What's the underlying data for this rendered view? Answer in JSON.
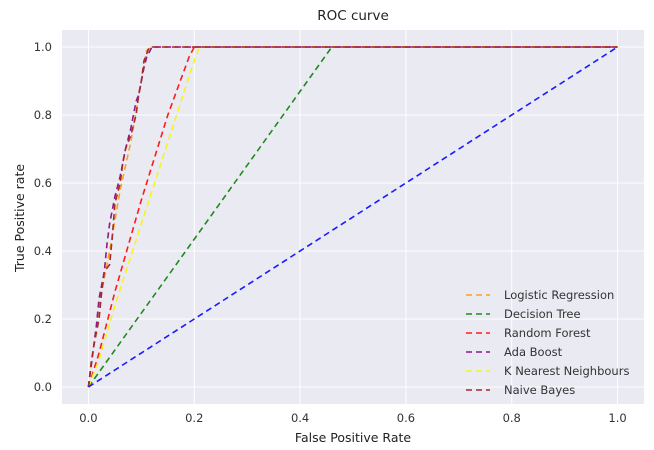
{
  "chart_data": {
    "type": "line",
    "title": "ROC curve",
    "xlabel": "False Positive Rate",
    "ylabel": "True Positive rate",
    "xlim": [
      -0.05,
      1.05
    ],
    "ylim": [
      -0.05,
      1.05
    ],
    "x_ticks": [
      "0.0",
      "0.2",
      "0.4",
      "0.6",
      "0.8",
      "1.0"
    ],
    "x_tick_values": [
      0,
      0.2,
      0.4,
      0.6,
      0.8,
      1.0
    ],
    "y_ticks": [
      "0.0",
      "0.2",
      "0.4",
      "0.6",
      "0.8",
      "1.0"
    ],
    "y_tick_values": [
      0,
      0.2,
      0.4,
      0.6,
      0.8,
      1.0
    ],
    "grid": true,
    "background": "#eaeaf2",
    "legend_position": "lower-right",
    "series": [
      {
        "name": "Logistic Regression",
        "color": "#ff9f1c",
        "style": "dashed",
        "x": [
          0,
          0.01,
          0.02,
          0.04,
          0.06,
          0.08,
          0.1,
          0.11,
          0.12,
          0.2,
          1.0
        ],
        "y": [
          0,
          0.12,
          0.24,
          0.4,
          0.58,
          0.72,
          0.9,
          0.99,
          1.0,
          1.0,
          1.0
        ]
      },
      {
        "name": "Decision Tree",
        "color": "#1f8a1f",
        "style": "dashed",
        "x": [
          0,
          0.46,
          1.0
        ],
        "y": [
          0,
          1.0,
          1.0
        ]
      },
      {
        "name": "Random Forest",
        "color": "#ff1a1a",
        "style": "dashed",
        "x": [
          0,
          0.02,
          0.05,
          0.1,
          0.15,
          0.19,
          0.2,
          1.0
        ],
        "y": [
          0,
          0.1,
          0.28,
          0.55,
          0.8,
          0.97,
          1.0,
          1.0
        ]
      },
      {
        "name": "Ada Boost",
        "color": "#8b1a8b",
        "style": "dashed",
        "x": [
          0,
          0.005,
          0.01,
          0.015,
          0.02,
          0.03,
          0.035,
          0.04,
          0.045,
          0.05,
          0.06,
          0.065,
          0.07,
          0.08,
          0.085,
          0.09,
          0.095,
          0.1,
          0.105,
          0.11,
          0.12,
          0.2,
          1.0
        ],
        "y": [
          0,
          0.06,
          0.12,
          0.18,
          0.26,
          0.34,
          0.42,
          0.48,
          0.52,
          0.56,
          0.62,
          0.66,
          0.7,
          0.76,
          0.8,
          0.84,
          0.86,
          0.9,
          0.94,
          0.97,
          1.0,
          1.0,
          1.0
        ]
      },
      {
        "name": "K Nearest Neighbours",
        "color": "#f5f51a",
        "style": "dashed",
        "x": [
          0,
          0.02,
          0.05,
          0.1,
          0.15,
          0.2,
          0.21,
          1.0
        ],
        "y": [
          0,
          0.08,
          0.24,
          0.48,
          0.72,
          0.96,
          1.0,
          1.0
        ]
      },
      {
        "name": "Naive Bayes",
        "color": "#a52a2a",
        "style": "dashed",
        "x": [
          0,
          0.005,
          0.01,
          0.02,
          0.025,
          0.03,
          0.04,
          0.045,
          0.05,
          0.06,
          0.065,
          0.07,
          0.08,
          0.09,
          0.095,
          0.1,
          0.105,
          0.11,
          0.115,
          0.2,
          1.0
        ],
        "y": [
          0,
          0.07,
          0.12,
          0.2,
          0.28,
          0.34,
          0.36,
          0.44,
          0.54,
          0.6,
          0.66,
          0.7,
          0.74,
          0.8,
          0.86,
          0.9,
          0.96,
          0.98,
          1.0,
          1.0,
          1.0
        ]
      },
      {
        "name": "",
        "color": "#1a1aff",
        "style": "dashed",
        "x": [
          0,
          1.0
        ],
        "y": [
          0,
          1.0
        ]
      }
    ]
  }
}
